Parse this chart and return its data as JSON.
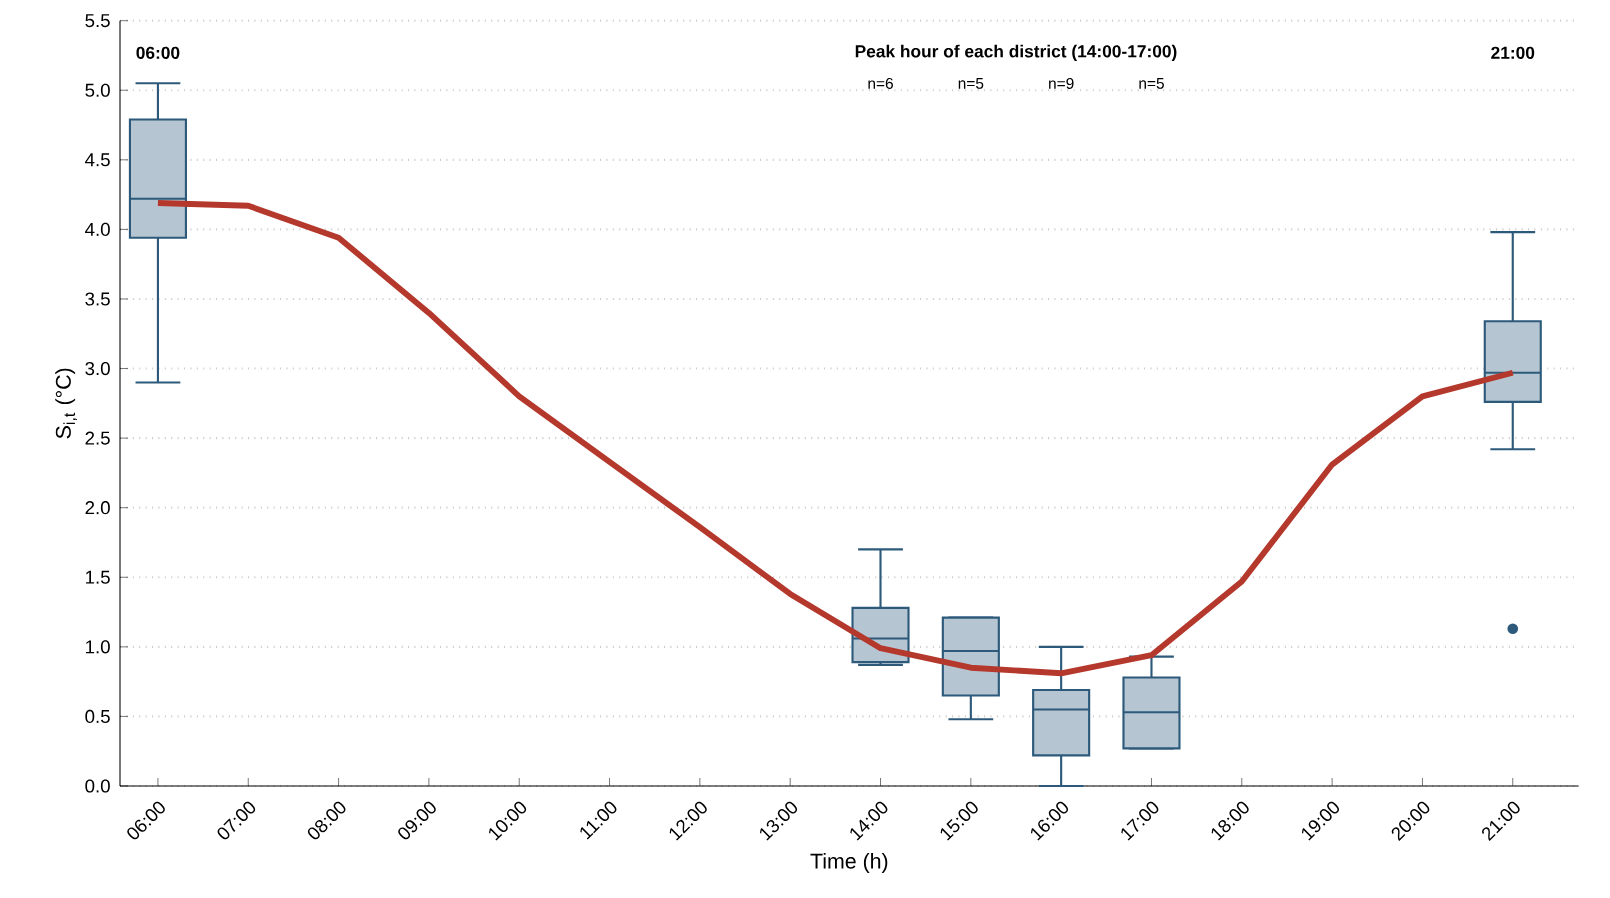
{
  "chart_data": {
    "type": "box",
    "xlabel": "Time (h)",
    "ylabel": "S$_{i,t}$ (°C)",
    "categories": [
      "06:00",
      "07:00",
      "08:00",
      "09:00",
      "10:00",
      "11:00",
      "12:00",
      "13:00",
      "14:00",
      "15:00",
      "16:00",
      "17:00",
      "18:00",
      "19:00",
      "20:00",
      "21:00"
    ],
    "ylim": [
      0,
      5.5
    ],
    "yticks": [
      {
        "value": 0,
        "label": "0.0"
      },
      {
        "value": 0.5,
        "label": "0.5"
      },
      {
        "value": 1,
        "label": "1.0"
      },
      {
        "value": 1.5,
        "label": "1.5"
      },
      {
        "value": 2,
        "label": "2.0"
      },
      {
        "value": 2.5,
        "label": "2.5"
      },
      {
        "value": 3,
        "label": "3.0"
      },
      {
        "value": 3.5,
        "label": "3.5"
      },
      {
        "value": 4,
        "label": "4.0"
      },
      {
        "value": 4.5,
        "label": "4.5"
      },
      {
        "value": 5,
        "label": "5.0"
      },
      {
        "value": 5.5,
        "label": "5.5"
      }
    ],
    "grid": "y",
    "series": [
      {
        "color": "#2d5a7b",
        "boxes": [
          {
            "low": 2.9,
            "q1": 3.94,
            "median": 4.22,
            "q3": 4.79,
            "high": 5.05
          },
          null,
          null,
          null,
          null,
          null,
          null,
          null,
          {
            "low": 0.87,
            "q1": 0.89,
            "median": 1.06,
            "q3": 1.28,
            "high": 1.7
          },
          {
            "low": 0.48,
            "q1": 0.65,
            "median": 0.97,
            "q3": 1.21,
            "high": 1.21
          },
          {
            "low": 0.0,
            "q1": 0.22,
            "median": 0.55,
            "q3": 0.69,
            "high": 1.0
          },
          {
            "low": 0.27,
            "q1": 0.27,
            "median": 0.53,
            "q3": 0.78,
            "high": 0.93
          },
          null,
          null,
          null,
          {
            "low": 2.42,
            "q1": 2.76,
            "median": 2.97,
            "q3": 3.34,
            "high": 3.98,
            "outliers": [
              1.13
            ]
          }
        ]
      },
      {
        "type": "line",
        "color": "#b5382d",
        "values": [
          4.19,
          4.17,
          3.94,
          3.4,
          2.8,
          2.33,
          1.86,
          1.38,
          0.99,
          0.85,
          0.81,
          0.94,
          1.47,
          2.31,
          2.8,
          2.97
        ]
      }
    ],
    "annotations": [
      "06:00",
      "21:00",
      "Peak hour of each district (14:00-17:00)",
      "n=6",
      "n=5",
      "n=9",
      "n=5"
    ]
  }
}
